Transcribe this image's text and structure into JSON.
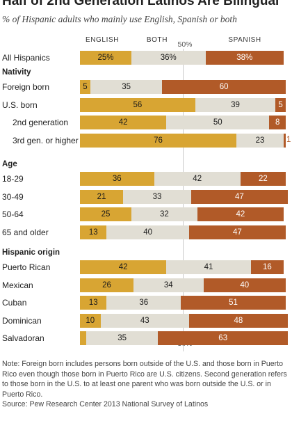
{
  "title": "Half of 2nd Generation Latinos Are Bilingual",
  "subtitle": "% of Hispanic adults who mainly use English, Spanish or both",
  "columns": {
    "english": "ENGLISH",
    "both": "BOTH",
    "spanish": "SPANISH"
  },
  "midpoint_label": "50%",
  "note": "Note: Foreign born includes persons born outside of the U.S. and those born in Puerto Rico even though those born in Puerto Rico are U.S. citizens. Second generation refers to those born in the U.S. to at least one parent who was born outside the U.S. or in Puerto Rico.",
  "source": "Source: Pew Research Center 2013 National Survey of Latinos",
  "colors": {
    "english": "#d8a533",
    "both": "#e1ded4",
    "spanish": "#b15a28"
  },
  "chart_data": {
    "type": "bar",
    "orientation": "horizontal",
    "stacked": true,
    "series_names": [
      "English",
      "Both",
      "Spanish"
    ],
    "xlim": [
      0,
      100
    ],
    "groups": [
      {
        "name": "",
        "rows": [
          {
            "label": "All Hispanics",
            "values": [
              25,
              36,
              38
            ],
            "labels": [
              "25%",
              "36%",
              "38%"
            ]
          }
        ]
      },
      {
        "name": "Nativity",
        "rows": [
          {
            "label": "Foreign born",
            "values": [
              5,
              35,
              60
            ],
            "labels": [
              "5",
              "35",
              "60"
            ]
          },
          {
            "label": "U.S. born",
            "values": [
              56,
              39,
              5
            ],
            "labels": [
              "56",
              "39",
              "5"
            ]
          },
          {
            "label": "2nd generation",
            "values": [
              42,
              50,
              8
            ],
            "labels": [
              "42",
              "50",
              "8"
            ],
            "indent": true
          },
          {
            "label": "3rd gen. or higher",
            "values": [
              76,
              23,
              1
            ],
            "labels": [
              "76",
              "23",
              "1"
            ],
            "indent": true
          }
        ]
      },
      {
        "name": "Age",
        "rows": [
          {
            "label": "18-29",
            "values": [
              36,
              42,
              22
            ],
            "labels": [
              "36",
              "42",
              "22"
            ]
          },
          {
            "label": "30-49",
            "values": [
              21,
              33,
              47
            ],
            "labels": [
              "21",
              "33",
              "47"
            ]
          },
          {
            "label": "50-64",
            "values": [
              25,
              32,
              42
            ],
            "labels": [
              "25",
              "32",
              "42"
            ]
          },
          {
            "label": "65 and older",
            "values": [
              13,
              40,
              47
            ],
            "labels": [
              "13",
              "40",
              "47"
            ]
          }
        ]
      },
      {
        "name": "Hispanic origin",
        "rows": [
          {
            "label": "Puerto Rican",
            "values": [
              42,
              41,
              16
            ],
            "labels": [
              "42",
              "41",
              "16"
            ]
          },
          {
            "label": "Mexican",
            "values": [
              26,
              34,
              40
            ],
            "labels": [
              "26",
              "34",
              "40"
            ]
          },
          {
            "label": "Cuban",
            "values": [
              13,
              36,
              51
            ],
            "labels": [
              "13",
              "36",
              "51"
            ]
          },
          {
            "label": "Dominican",
            "values": [
              10,
              43,
              48
            ],
            "labels": [
              "10",
              "43",
              "48"
            ]
          },
          {
            "label": "Salvadoran",
            "values": [
              3,
              35,
              63
            ],
            "labels": [
              "3",
              "35",
              "63"
            ]
          }
        ]
      }
    ]
  }
}
